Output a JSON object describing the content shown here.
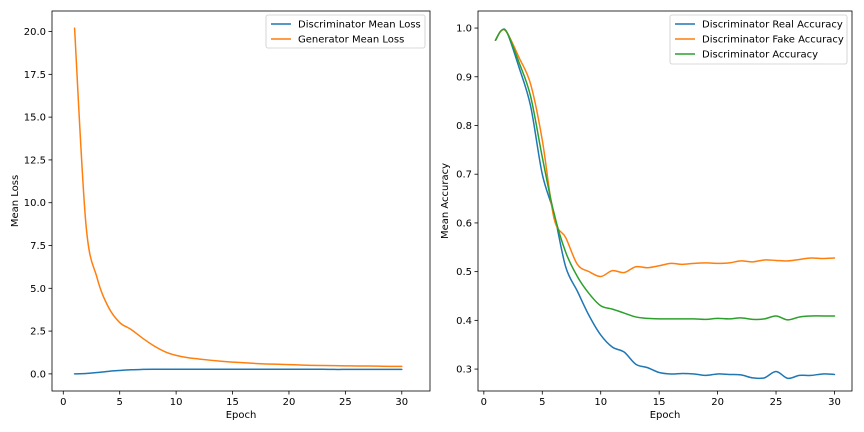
{
  "chart_data": [
    {
      "type": "line",
      "xlabel": "Epoch",
      "ylabel": "Mean Loss",
      "xlim": [
        -1.0,
        32.5
      ],
      "ylim": [
        -1.0,
        21.2
      ],
      "xticks": [
        0,
        5,
        10,
        15,
        20,
        25,
        30
      ],
      "xtick_labels": [
        "0",
        "5",
        "10",
        "15",
        "20",
        "25",
        "30"
      ],
      "yticks": [
        0,
        2.5,
        5,
        7.5,
        10,
        12.5,
        15,
        17.5,
        20
      ],
      "ytick_labels": [
        "0.0",
        "2.5",
        "5.0",
        "7.5",
        "10.0",
        "12.5",
        "15.0",
        "17.5",
        "20.0"
      ],
      "legend_position": "top-right",
      "x": [
        1,
        2,
        3,
        4,
        5,
        6,
        7,
        8,
        9,
        10,
        11,
        12,
        13,
        14,
        15,
        16,
        17,
        18,
        19,
        20,
        21,
        22,
        23,
        24,
        25,
        26,
        27,
        28,
        29,
        30
      ],
      "series": [
        {
          "name": "Discriminator Mean Loss",
          "color": "#1f77b4",
          "values": [
            0.0,
            0.02,
            0.08,
            0.15,
            0.2,
            0.24,
            0.26,
            0.27,
            0.27,
            0.27,
            0.27,
            0.27,
            0.27,
            0.27,
            0.27,
            0.27,
            0.27,
            0.27,
            0.27,
            0.27,
            0.27,
            0.27,
            0.27,
            0.26,
            0.26,
            0.26,
            0.26,
            0.26,
            0.26,
            0.26
          ]
        },
        {
          "name": "Generator Mean Loss",
          "color": "#ff7f0e",
          "values": [
            20.2,
            8.8,
            5.6,
            3.9,
            3.0,
            2.6,
            2.1,
            1.65,
            1.3,
            1.08,
            0.95,
            0.87,
            0.8,
            0.74,
            0.69,
            0.65,
            0.61,
            0.58,
            0.56,
            0.54,
            0.52,
            0.5,
            0.49,
            0.48,
            0.47,
            0.46,
            0.46,
            0.45,
            0.44,
            0.44
          ]
        }
      ]
    },
    {
      "type": "line",
      "xlabel": "Epoch",
      "ylabel": "Mean Accuracy",
      "xlim": [
        -0.5,
        31.5
      ],
      "ylim": [
        0.255,
        1.035
      ],
      "xticks": [
        0,
        5,
        10,
        15,
        20,
        25,
        30
      ],
      "xtick_labels": [
        "0",
        "5",
        "10",
        "15",
        "20",
        "25",
        "30"
      ],
      "yticks": [
        0.3,
        0.4,
        0.5,
        0.6,
        0.7,
        0.8,
        0.9,
        1.0
      ],
      "ytick_labels": [
        "0.3",
        "0.4",
        "0.5",
        "0.6",
        "0.7",
        "0.8",
        "0.9",
        "1.0"
      ],
      "legend_position": "top-right",
      "x": [
        1,
        1.5,
        2,
        3,
        4,
        5,
        6,
        7,
        8,
        9,
        10,
        11,
        12,
        13,
        14,
        15,
        16,
        17,
        18,
        19,
        20,
        21,
        22,
        23,
        24,
        25,
        26,
        27,
        28,
        29,
        30
      ],
      "series": [
        {
          "name": "Discriminator Real Accuracy",
          "color": "#1f77b4",
          "values": [
            0.975,
            0.995,
            0.99,
            0.92,
            0.84,
            0.7,
            0.62,
            0.51,
            0.46,
            0.41,
            0.37,
            0.345,
            0.335,
            0.31,
            0.303,
            0.293,
            0.29,
            0.291,
            0.29,
            0.287,
            0.29,
            0.289,
            0.288,
            0.282,
            0.282,
            0.295,
            0.281,
            0.287,
            0.287,
            0.29,
            0.289
          ]
        },
        {
          "name": "Discriminator Fake Accuracy",
          "color": "#ff7f0e",
          "values": [
            0.975,
            0.995,
            0.99,
            0.94,
            0.885,
            0.77,
            0.61,
            0.57,
            0.515,
            0.5,
            0.49,
            0.502,
            0.498,
            0.51,
            0.508,
            0.512,
            0.517,
            0.515,
            0.517,
            0.518,
            0.517,
            0.518,
            0.522,
            0.52,
            0.524,
            0.523,
            0.522,
            0.525,
            0.528,
            0.527,
            0.528
          ]
        },
        {
          "name": "Discriminator Accuracy",
          "color": "#2ca02c",
          "values": [
            0.975,
            0.995,
            0.99,
            0.93,
            0.86,
            0.735,
            0.62,
            0.54,
            0.49,
            0.455,
            0.43,
            0.423,
            0.415,
            0.407,
            0.404,
            0.403,
            0.403,
            0.403,
            0.403,
            0.402,
            0.404,
            0.403,
            0.405,
            0.402,
            0.403,
            0.409,
            0.401,
            0.407,
            0.409,
            0.409,
            0.409
          ]
        }
      ]
    }
  ]
}
